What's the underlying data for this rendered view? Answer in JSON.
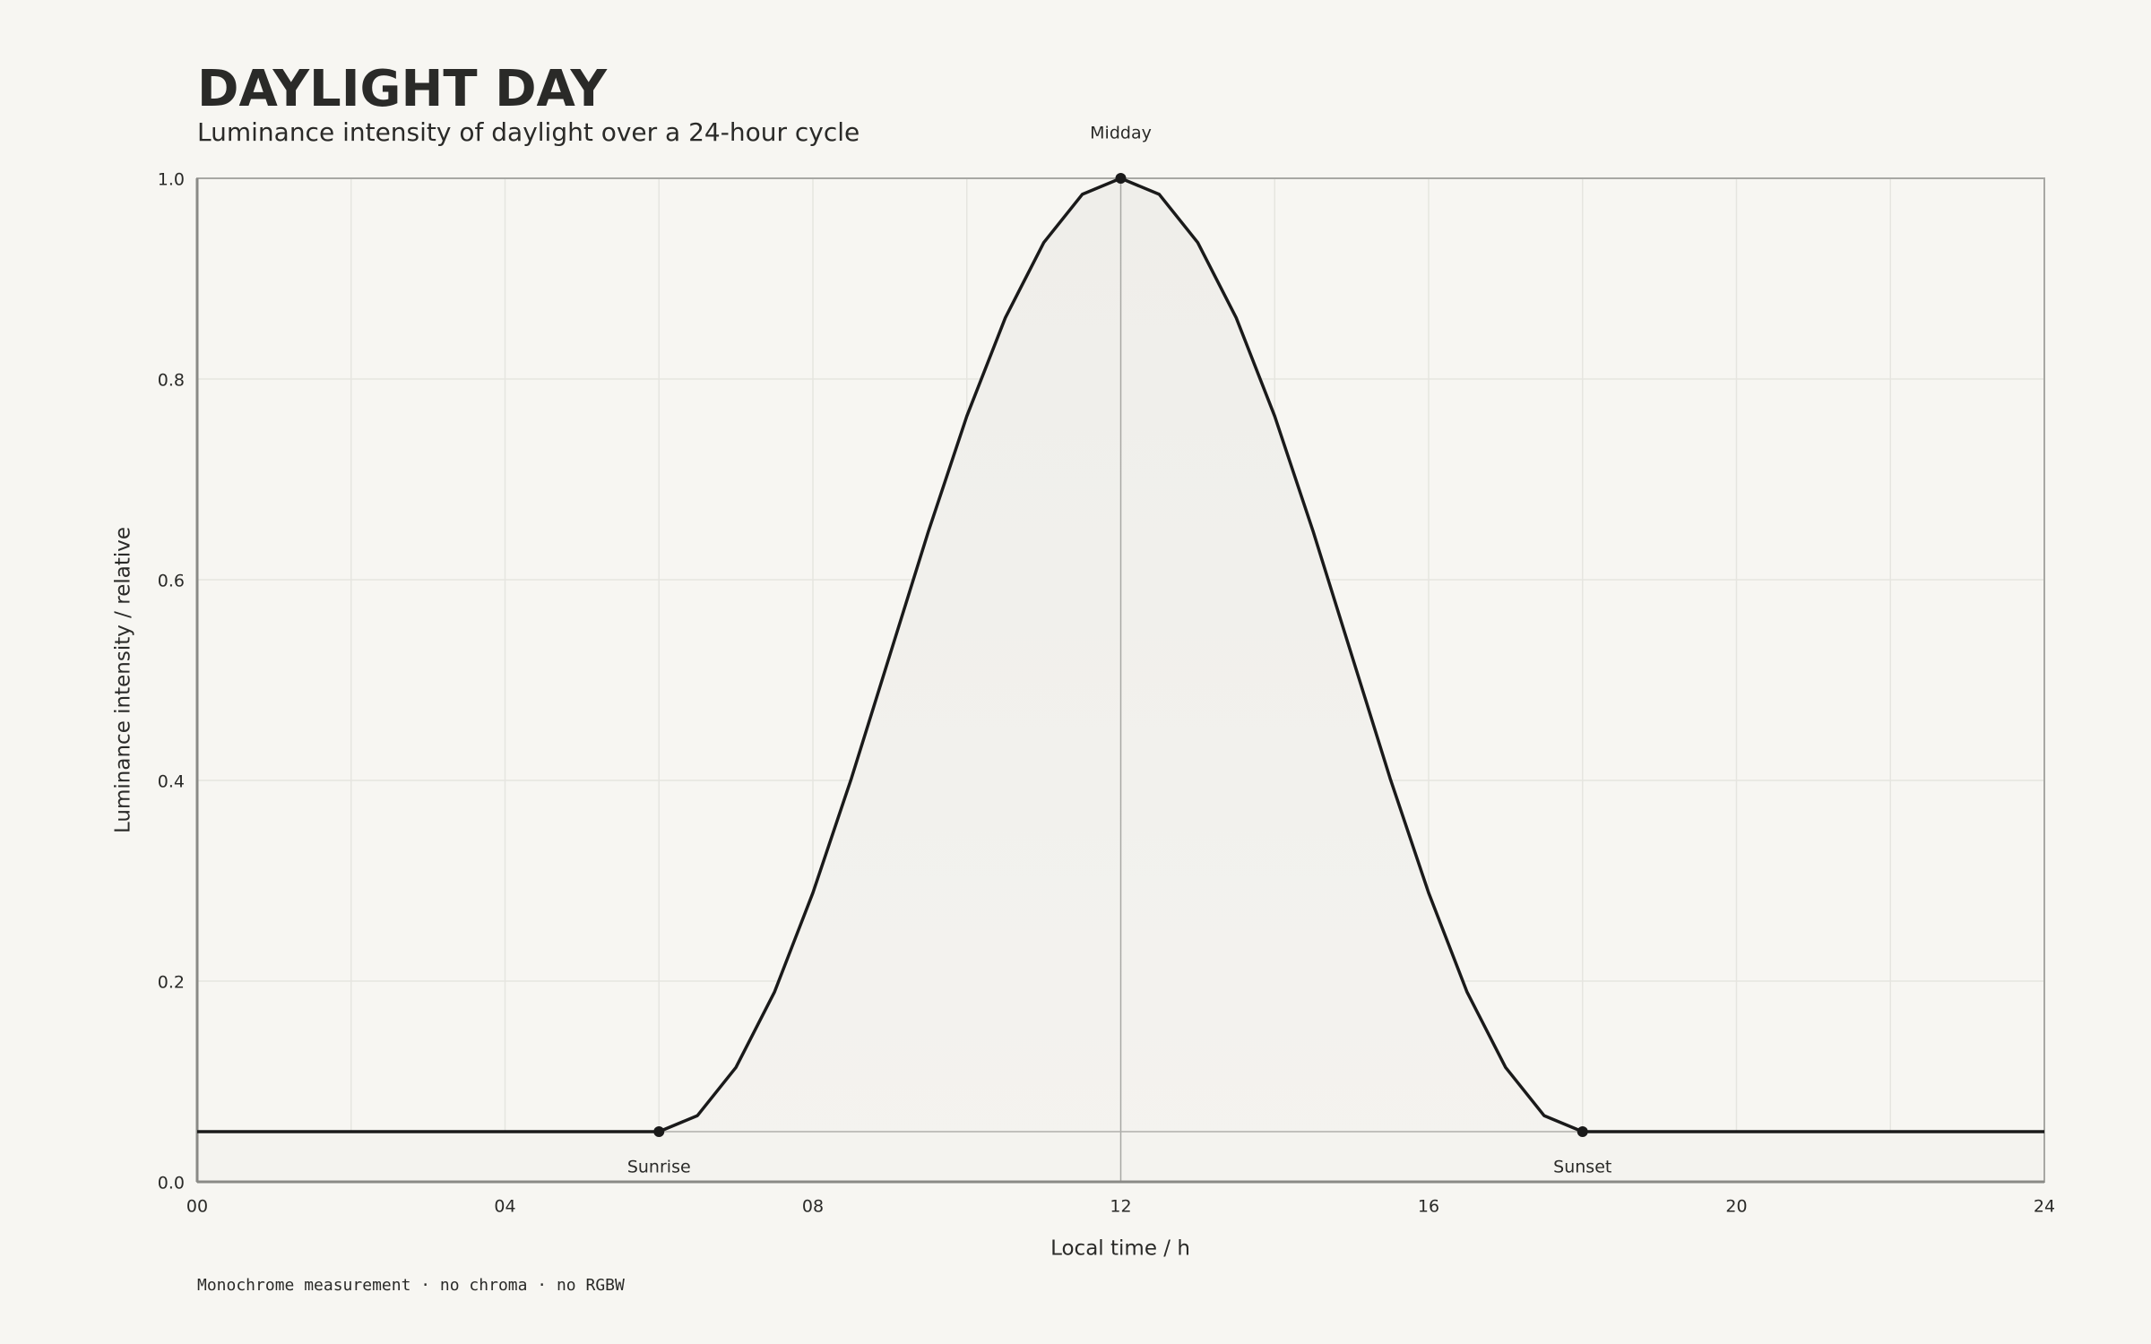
{
  "chart_data": {
    "type": "line",
    "title": "DAYLIGHT DAY",
    "subtitle": "Luminance intensity of daylight over a 24-hour cycle",
    "xlabel": "Local time / h",
    "ylabel": "Luminance intensity / relative",
    "footnote": "Monochrome measurement · no chroma · no RGBW",
    "x": [
      0,
      2,
      4,
      6,
      6.5,
      7,
      7.5,
      8,
      8.5,
      9,
      9.5,
      10,
      10.5,
      11,
      11.5,
      12,
      12.5,
      13,
      13.5,
      14,
      14.5,
      15,
      15.5,
      16,
      16.5,
      17,
      17.5,
      18,
      20,
      22,
      24
    ],
    "series": [
      {
        "name": "Luminance",
        "color": "#1a1a1a",
        "values": [
          0.05,
          0.05,
          0.05,
          0.05,
          0.066,
          0.114,
          0.189,
          0.288,
          0.402,
          0.525,
          0.648,
          0.763,
          0.861,
          0.936,
          0.984,
          1.0,
          0.984,
          0.936,
          0.861,
          0.763,
          0.648,
          0.525,
          0.402,
          0.288,
          0.189,
          0.114,
          0.066,
          0.05,
          0.05,
          0.05,
          0.05
        ]
      }
    ],
    "reference_line": 0.05,
    "xlim": [
      0,
      24
    ],
    "ylim": [
      0,
      1
    ],
    "xticks": [
      {
        "value": 0,
        "label": "00"
      },
      {
        "value": 4,
        "label": "04"
      },
      {
        "value": 8,
        "label": "08"
      },
      12,
      16,
      20,
      24
    ],
    "xminor": [
      2,
      6,
      10,
      14,
      18,
      22
    ],
    "yticks": [
      {
        "value": 0,
        "label": "0.0"
      },
      0.2,
      0.4,
      0.6,
      0.8,
      {
        "value": 1,
        "label": "1.0"
      }
    ],
    "grid": true,
    "annotations": [
      {
        "label": "Sunrise",
        "x": 6,
        "y": 0.05
      },
      {
        "label": "Midday",
        "x": 12,
        "y": 1.0
      },
      {
        "label": "Sunset",
        "x": 18,
        "y": 0.05
      }
    ]
  }
}
